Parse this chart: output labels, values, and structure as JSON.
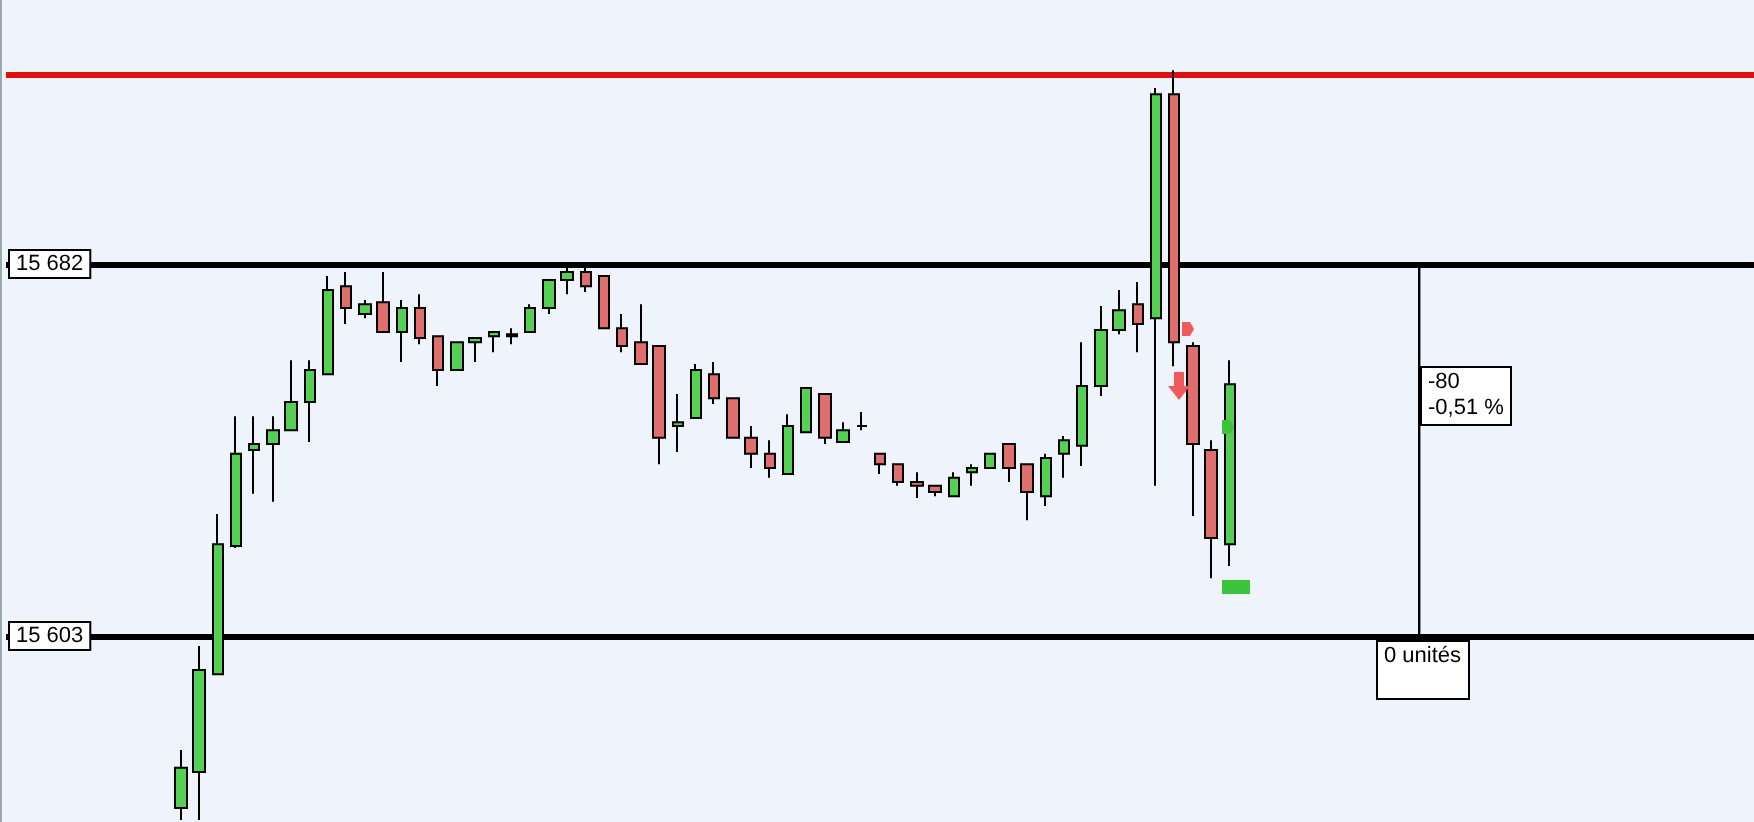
{
  "chart_data": {
    "type": "candlestick",
    "tick_labels": "y",
    "ylim": [
      15563.5,
      15738.1
    ],
    "yticks": [
      {
        "value": 15603,
        "label": "15 603"
      },
      {
        "value": 15682,
        "label": "15 682"
      }
    ],
    "categories": [
      null,
      null,
      null,
      null,
      null,
      null,
      null,
      null,
      null,
      null,
      null,
      null,
      null,
      null,
      null,
      null,
      null,
      null,
      null,
      null,
      null,
      null,
      null,
      null,
      null,
      null,
      null,
      null,
      null,
      null,
      null,
      null,
      null,
      null,
      null,
      null,
      null,
      null,
      null,
      null,
      null,
      null,
      null,
      null,
      null,
      null,
      null,
      null,
      null,
      null,
      null,
      null,
      null,
      null,
      null,
      null,
      null,
      null,
      null,
      null,
      null,
      null,
      null,
      null,
      null,
      null,
      null,
      null,
      null,
      null,
      null,
      null,
      null,
      null,
      null,
      null,
      null,
      null,
      null,
      null,
      null,
      null,
      null,
      null,
      null,
      null,
      null,
      null,
      null,
      null,
      null,
      null,
      null,
      null,
      null
    ],
    "ohlc": [
      null,
      null,
      null,
      null,
      null,
      null,
      null,
      null,
      null,
      [
        15566.5,
        15578.8,
        15563.9,
        15575.0
      ],
      [
        15574.1,
        15600.9,
        15563.9,
        15595.8
      ],
      [
        15594.9,
        15628.9,
        15594.9,
        15622.5
      ],
      [
        15622.1,
        15649.7,
        15621.7,
        15641.7
      ],
      [
        15642.5,
        15649.7,
        15633.2,
        15643.8
      ],
      [
        15643.8,
        15649.7,
        15631.5,
        15646.7
      ],
      [
        15646.7,
        15661.6,
        15646.7,
        15652.7
      ],
      [
        15652.7,
        15661.6,
        15644.2,
        15659.5
      ],
      [
        15658.6,
        15679.5,
        15658.6,
        15676.5
      ],
      [
        15677.3,
        15680.3,
        15669.3,
        15672.7
      ],
      [
        15671.4,
        15674.4,
        15670.5,
        15673.5
      ],
      [
        15673.9,
        15680.3,
        15667.6,
        15667.6
      ],
      [
        15667.6,
        15674.4,
        15661.2,
        15672.7
      ],
      [
        15672.7,
        15675.6,
        15665.0,
        15666.3
      ],
      [
        15666.7,
        15666.7,
        15656.1,
        15659.5
      ],
      [
        15659.5,
        15665.4,
        15659.5,
        15665.4
      ],
      [
        15665.4,
        15666.3,
        15661.2,
        15666.3
      ],
      [
        15666.7,
        15667.6,
        15663.3,
        15667.6
      ],
      [
        15666.7,
        15668.4,
        15665.0,
        15667.1
      ],
      [
        15667.6,
        15673.5,
        15667.6,
        15672.7
      ],
      [
        15672.7,
        15678.6,
        15671.4,
        15678.6
      ],
      [
        15678.6,
        15681.6,
        15675.6,
        15680.3
      ],
      [
        15680.3,
        15681.6,
        15676.1,
        15677.3
      ],
      [
        15679.5,
        15679.5,
        15668.4,
        15668.4
      ],
      [
        15668.4,
        15671.4,
        15663.3,
        15664.6
      ],
      [
        15665.4,
        15673.5,
        15660.8,
        15660.8
      ],
      [
        15664.6,
        15664.6,
        15639.5,
        15645.1
      ],
      [
        15647.6,
        15654.4,
        15642.1,
        15648.4
      ],
      [
        15649.3,
        15660.8,
        15649.3,
        15659.5
      ],
      [
        15658.6,
        15661.2,
        15652.3,
        15653.5
      ],
      [
        15653.5,
        15653.5,
        15645.1,
        15645.1
      ],
      [
        15645.1,
        15647.6,
        15638.7,
        15641.7
      ],
      [
        15641.7,
        15644.6,
        15636.6,
        15638.7
      ],
      [
        15637.4,
        15650.1,
        15637.4,
        15647.6
      ],
      [
        15646.3,
        15655.7,
        15646.3,
        15655.7
      ],
      [
        15654.4,
        15654.4,
        15643.8,
        15645.1
      ],
      [
        15644.2,
        15648.4,
        15644.2,
        15646.7
      ],
      [
        15647.6,
        15650.6,
        15646.7,
        15647.6
      ],
      [
        15641.7,
        15641.7,
        15637.4,
        15639.5
      ],
      [
        15639.5,
        15639.5,
        15634.9,
        15635.7
      ],
      [
        15635.7,
        15637.8,
        15632.3,
        15634.9
      ],
      [
        15634.9,
        15634.9,
        15632.7,
        15633.6
      ],
      [
        15632.7,
        15637.8,
        15632.7,
        15636.6
      ],
      [
        15637.8,
        15639.5,
        15634.9,
        15638.7
      ],
      [
        15638.7,
        15641.7,
        15638.7,
        15641.7
      ],
      [
        15643.8,
        15643.8,
        15635.7,
        15638.7
      ],
      [
        15639.5,
        15639.5,
        15627.6,
        15633.6
      ],
      [
        15632.7,
        15641.7,
        15630.6,
        15640.8
      ],
      [
        15641.7,
        15645.5,
        15636.6,
        15644.6
      ],
      [
        15643.4,
        15665.4,
        15639.1,
        15656.1
      ],
      [
        15656.1,
        15673.1,
        15654.0,
        15668.0
      ],
      [
        15668.0,
        15676.5,
        15667.1,
        15672.2
      ],
      [
        15673.5,
        15678.2,
        15663.3,
        15669.3
      ],
      [
        15670.5,
        15719.4,
        15634.9,
        15718.1
      ],
      [
        15718.1,
        15723.2,
        15660.3,
        15665.4
      ],
      [
        15664.6,
        15665.4,
        15628.5,
        15643.8
      ],
      [
        15642.5,
        15644.6,
        15615.3,
        15623.8
      ],
      [
        15622.5,
        15661.6,
        15617.9,
        15656.5
      ],
      null,
      null,
      null,
      null,
      null,
      null,
      null,
      null,
      null,
      null,
      null,
      null,
      null,
      null,
      null,
      null,
      null,
      null,
      null,
      null,
      null,
      null,
      null,
      null,
      null,
      null,
      null,
      null
    ],
    "ref_lines": [
      {
        "axis": "y",
        "value": 15722.3,
        "label": null,
        "color": "#e01010"
      },
      {
        "axis": "y",
        "value": 15682,
        "label": null,
        "color": "#000000"
      },
      {
        "axis": "y",
        "value": 15603,
        "label": null,
        "color": "#000000"
      }
    ],
    "annotations": [
      "-80",
      "-0,51 %",
      "0 unités"
    ]
  }
}
